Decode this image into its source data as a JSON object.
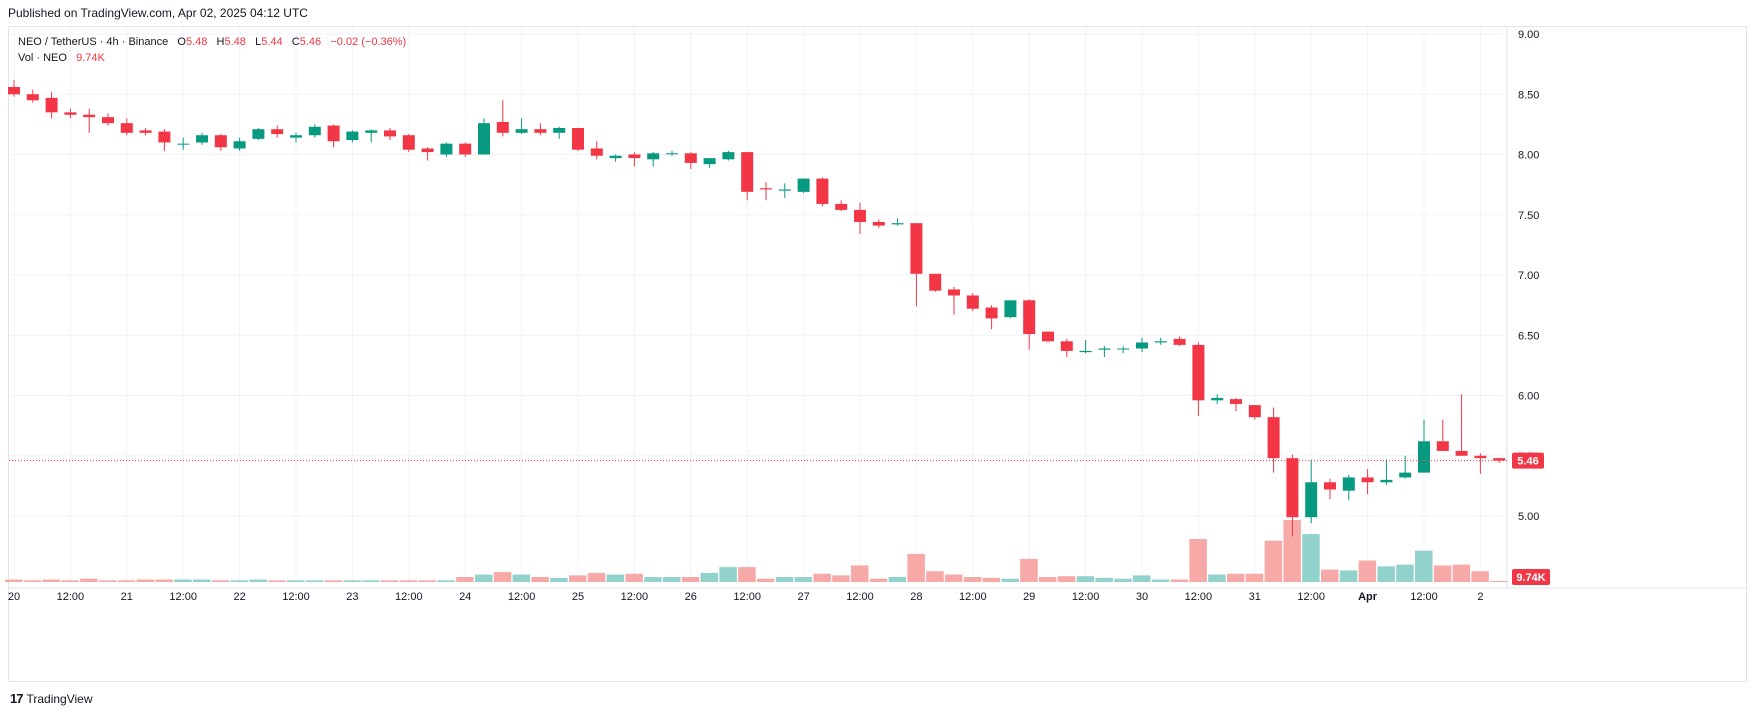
{
  "header": {
    "published": "Published on TradingView.com, Apr 02, 2025 04:12 UTC"
  },
  "legend": {
    "symbol": "NEO / TetherUS · 4h · Binance",
    "open_label": "O",
    "open": "5.48",
    "high_label": "H",
    "high": "5.48",
    "low_label": "L",
    "low": "5.44",
    "close_label": "C",
    "close": "5.46",
    "change": "−0.02 (−0.36%)",
    "vol_label": "Vol · NEO",
    "vol_value": "9.74K"
  },
  "footer": {
    "brand": "TradingView",
    "logo_text": "17"
  },
  "colors": {
    "up": "#089981",
    "down": "#f23645",
    "up_volume": "#92d2cc",
    "down_volume": "#f7a9a7",
    "grid": "#f0f3fa",
    "axis_text": "#131722"
  },
  "chart_data": {
    "type": "candlestick",
    "price_axis": {
      "ticks": [
        9.0,
        8.5,
        8.0,
        7.5,
        7.0,
        6.5,
        6.0,
        5.5,
        5.0
      ],
      "tick_labels": [
        "9.00",
        "8.50",
        "8.00",
        "7.50",
        "7.00",
        "6.50",
        "6.00",
        "5.50",
        "5.00"
      ],
      "range": [
        4.45,
        9.05
      ]
    },
    "time_axis": {
      "labels": [
        "20",
        "12:00",
        "21",
        "12:00",
        "22",
        "12:00",
        "23",
        "12:00",
        "24",
        "12:00",
        "25",
        "12:00",
        "26",
        "12:00",
        "27",
        "12:00",
        "28",
        "12:00",
        "29",
        "12:00",
        "30",
        "12:00",
        "31",
        "12:00",
        "Apr",
        "12:00",
        "2"
      ]
    },
    "last_price": {
      "value": 5.46,
      "label": "5.46"
    },
    "last_volume": {
      "label": "9.74K"
    },
    "candles": [
      {
        "o": 8.56,
        "h": 8.62,
        "l": 8.48,
        "c": 8.5,
        "v": 3
      },
      {
        "o": 8.5,
        "h": 8.54,
        "l": 8.43,
        "c": 8.45,
        "v": 2
      },
      {
        "o": 8.47,
        "h": 8.52,
        "l": 8.3,
        "c": 8.35,
        "v": 3
      },
      {
        "o": 8.35,
        "h": 8.38,
        "l": 8.3,
        "c": 8.33,
        "v": 2
      },
      {
        "o": 8.33,
        "h": 8.38,
        "l": 8.18,
        "c": 8.31,
        "v": 4
      },
      {
        "o": 8.31,
        "h": 8.34,
        "l": 8.24,
        "c": 8.26,
        "v": 2
      },
      {
        "o": 8.26,
        "h": 8.3,
        "l": 8.16,
        "c": 8.18,
        "v": 2
      },
      {
        "o": 8.2,
        "h": 8.22,
        "l": 8.16,
        "c": 8.18,
        "v": 3
      },
      {
        "o": 8.19,
        "h": 8.21,
        "l": 8.03,
        "c": 8.1,
        "v": 3
      },
      {
        "o": 8.09,
        "h": 8.14,
        "l": 8.04,
        "c": 8.09,
        "v": 3
      },
      {
        "o": 8.1,
        "h": 8.18,
        "l": 8.08,
        "c": 8.16,
        "v": 3
      },
      {
        "o": 8.16,
        "h": 8.17,
        "l": 8.03,
        "c": 8.06,
        "v": 2
      },
      {
        "o": 8.05,
        "h": 8.14,
        "l": 8.03,
        "c": 8.11,
        "v": 2
      },
      {
        "o": 8.13,
        "h": 8.22,
        "l": 8.12,
        "c": 8.21,
        "v": 3
      },
      {
        "o": 8.21,
        "h": 8.24,
        "l": 8.14,
        "c": 8.17,
        "v": 2
      },
      {
        "o": 8.14,
        "h": 8.18,
        "l": 8.1,
        "c": 8.16,
        "v": 2
      },
      {
        "o": 8.16,
        "h": 8.25,
        "l": 8.14,
        "c": 8.23,
        "v": 2
      },
      {
        "o": 8.24,
        "h": 8.25,
        "l": 8.06,
        "c": 8.11,
        "v": 2
      },
      {
        "o": 8.12,
        "h": 8.2,
        "l": 8.1,
        "c": 8.19,
        "v": 2
      },
      {
        "o": 8.18,
        "h": 8.21,
        "l": 8.1,
        "c": 8.2,
        "v": 2
      },
      {
        "o": 8.2,
        "h": 8.22,
        "l": 8.12,
        "c": 8.15,
        "v": 2
      },
      {
        "o": 8.16,
        "h": 8.17,
        "l": 8.02,
        "c": 8.04,
        "v": 2
      },
      {
        "o": 8.05,
        "h": 8.06,
        "l": 7.95,
        "c": 8.02,
        "v": 2
      },
      {
        "o": 8.0,
        "h": 8.1,
        "l": 7.98,
        "c": 8.09,
        "v": 2
      },
      {
        "o": 8.09,
        "h": 8.1,
        "l": 7.98,
        "c": 8.0,
        "v": 6
      },
      {
        "o": 8.0,
        "h": 8.3,
        "l": 8.0,
        "c": 8.26,
        "v": 9
      },
      {
        "o": 8.27,
        "h": 8.45,
        "l": 8.15,
        "c": 8.18,
        "v": 12
      },
      {
        "o": 8.18,
        "h": 8.3,
        "l": 8.17,
        "c": 8.21,
        "v": 9
      },
      {
        "o": 8.21,
        "h": 8.26,
        "l": 8.16,
        "c": 8.18,
        "v": 6
      },
      {
        "o": 8.18,
        "h": 8.23,
        "l": 8.13,
        "c": 8.22,
        "v": 5
      },
      {
        "o": 8.22,
        "h": 8.22,
        "l": 8.03,
        "c": 8.04,
        "v": 8
      },
      {
        "o": 8.05,
        "h": 8.11,
        "l": 7.96,
        "c": 7.99,
        "v": 11
      },
      {
        "o": 7.97,
        "h": 8.0,
        "l": 7.94,
        "c": 7.99,
        "v": 9
      },
      {
        "o": 8.0,
        "h": 8.02,
        "l": 7.9,
        "c": 7.97,
        "v": 10
      },
      {
        "o": 7.96,
        "h": 8.02,
        "l": 7.9,
        "c": 8.01,
        "v": 6
      },
      {
        "o": 8.01,
        "h": 8.03,
        "l": 7.99,
        "c": 8.01,
        "v": 6
      },
      {
        "o": 8.01,
        "h": 8.02,
        "l": 7.88,
        "c": 7.93,
        "v": 6
      },
      {
        "o": 7.92,
        "h": 7.96,
        "l": 7.89,
        "c": 7.97,
        "v": 11
      },
      {
        "o": 7.96,
        "h": 8.03,
        "l": 7.95,
        "c": 8.02,
        "v": 18
      },
      {
        "o": 8.02,
        "h": 8.02,
        "l": 7.62,
        "c": 7.69,
        "v": 18
      },
      {
        "o": 7.72,
        "h": 7.77,
        "l": 7.62,
        "c": 7.71,
        "v": 4
      },
      {
        "o": 7.7,
        "h": 7.76,
        "l": 7.64,
        "c": 7.71,
        "v": 6
      },
      {
        "o": 7.69,
        "h": 7.8,
        "l": 7.68,
        "c": 7.8,
        "v": 6
      },
      {
        "o": 7.8,
        "h": 7.81,
        "l": 7.57,
        "c": 7.59,
        "v": 10
      },
      {
        "o": 7.59,
        "h": 7.62,
        "l": 7.53,
        "c": 7.54,
        "v": 8
      },
      {
        "o": 7.54,
        "h": 7.6,
        "l": 7.34,
        "c": 7.44,
        "v": 20
      },
      {
        "o": 7.44,
        "h": 7.46,
        "l": 7.39,
        "c": 7.41,
        "v": 4
      },
      {
        "o": 7.42,
        "h": 7.47,
        "l": 7.41,
        "c": 7.43,
        "v": 6
      },
      {
        "o": 7.43,
        "h": 7.43,
        "l": 6.74,
        "c": 7.01,
        "v": 34
      },
      {
        "o": 7.01,
        "h": 7.01,
        "l": 6.86,
        "c": 6.87,
        "v": 13
      },
      {
        "o": 6.88,
        "h": 6.9,
        "l": 6.67,
        "c": 6.83,
        "v": 9
      },
      {
        "o": 6.83,
        "h": 6.85,
        "l": 6.7,
        "c": 6.72,
        "v": 6
      },
      {
        "o": 6.73,
        "h": 6.75,
        "l": 6.55,
        "c": 6.64,
        "v": 5
      },
      {
        "o": 6.65,
        "h": 6.79,
        "l": 6.64,
        "c": 6.79,
        "v": 4
      },
      {
        "o": 6.79,
        "h": 6.8,
        "l": 6.38,
        "c": 6.51,
        "v": 28
      },
      {
        "o": 6.53,
        "h": 6.53,
        "l": 6.44,
        "c": 6.45,
        "v": 6
      },
      {
        "o": 6.45,
        "h": 6.47,
        "l": 6.32,
        "c": 6.37,
        "v": 7
      },
      {
        "o": 6.36,
        "h": 6.46,
        "l": 6.35,
        "c": 6.37,
        "v": 7
      },
      {
        "o": 6.38,
        "h": 6.41,
        "l": 6.32,
        "c": 6.39,
        "v": 5
      },
      {
        "o": 6.39,
        "h": 6.41,
        "l": 6.35,
        "c": 6.39,
        "v": 4
      },
      {
        "o": 6.39,
        "h": 6.48,
        "l": 6.36,
        "c": 6.44,
        "v": 8
      },
      {
        "o": 6.44,
        "h": 6.48,
        "l": 6.42,
        "c": 6.45,
        "v": 3
      },
      {
        "o": 6.47,
        "h": 6.49,
        "l": 6.41,
        "c": 6.42,
        "v": 3
      },
      {
        "o": 6.42,
        "h": 6.44,
        "l": 5.83,
        "c": 5.96,
        "v": 52
      },
      {
        "o": 5.96,
        "h": 6.01,
        "l": 5.93,
        "c": 5.98,
        "v": 9
      },
      {
        "o": 5.97,
        "h": 5.98,
        "l": 5.87,
        "c": 5.93,
        "v": 10
      },
      {
        "o": 5.92,
        "h": 5.92,
        "l": 5.8,
        "c": 5.82,
        "v": 10
      },
      {
        "o": 5.82,
        "h": 5.9,
        "l": 5.36,
        "c": 5.48,
        "v": 50
      },
      {
        "o": 5.48,
        "h": 5.51,
        "l": 4.83,
        "c": 4.99,
        "v": 75
      },
      {
        "o": 4.99,
        "h": 5.47,
        "l": 4.94,
        "c": 5.28,
        "v": 58
      },
      {
        "o": 5.28,
        "h": 5.31,
        "l": 5.14,
        "c": 5.22,
        "v": 15
      },
      {
        "o": 5.21,
        "h": 5.34,
        "l": 5.13,
        "c": 5.32,
        "v": 14
      },
      {
        "o": 5.32,
        "h": 5.39,
        "l": 5.18,
        "c": 5.28,
        "v": 26
      },
      {
        "o": 5.28,
        "h": 5.47,
        "l": 5.26,
        "c": 5.3,
        "v": 19
      },
      {
        "o": 5.32,
        "h": 5.5,
        "l": 5.31,
        "c": 5.36,
        "v": 21
      },
      {
        "o": 5.36,
        "h": 5.8,
        "l": 5.36,
        "c": 5.62,
        "v": 38
      },
      {
        "o": 5.62,
        "h": 5.8,
        "l": 5.54,
        "c": 5.54,
        "v": 20
      },
      {
        "o": 5.54,
        "h": 6.01,
        "l": 5.5,
        "c": 5.5,
        "v": 21
      },
      {
        "o": 5.5,
        "h": 5.52,
        "l": 5.35,
        "c": 5.48,
        "v": 13
      },
      {
        "o": 5.48,
        "h": 5.48,
        "l": 5.44,
        "c": 5.46,
        "v": 1
      }
    ]
  }
}
